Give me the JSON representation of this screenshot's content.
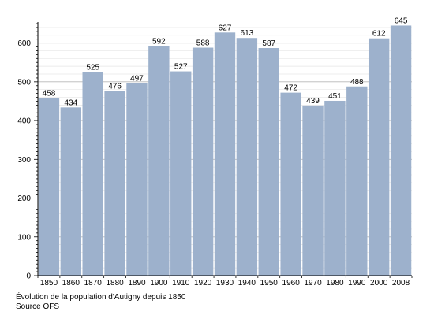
{
  "caption": {
    "line1": "Évolution de la population d'Autigny depuis 1850",
    "line2": "Source OFS"
  },
  "chart_data": {
    "type": "bar",
    "categories": [
      "1850",
      "1860",
      "1870",
      "1880",
      "1890",
      "1900",
      "1910",
      "1920",
      "1930",
      "1940",
      "1950",
      "1960",
      "1970",
      "1980",
      "1990",
      "2000",
      "2008"
    ],
    "values": [
      458,
      434,
      525,
      476,
      497,
      592,
      527,
      588,
      627,
      613,
      587,
      472,
      439,
      451,
      488,
      612,
      645
    ],
    "data_labels": [
      "458",
      "434",
      "525",
      "476",
      "497",
      "592",
      "527",
      "588",
      "627",
      "613",
      "587",
      "472",
      "439",
      "451",
      "488",
      "612",
      "645"
    ],
    "yticks": [
      "0",
      "100",
      "200",
      "300",
      "400",
      "500",
      "600"
    ],
    "ylim": [
      0,
      650
    ],
    "grid": true,
    "bar_color": "#9db1cc",
    "title": "",
    "xlabel": "",
    "ylabel": ""
  }
}
